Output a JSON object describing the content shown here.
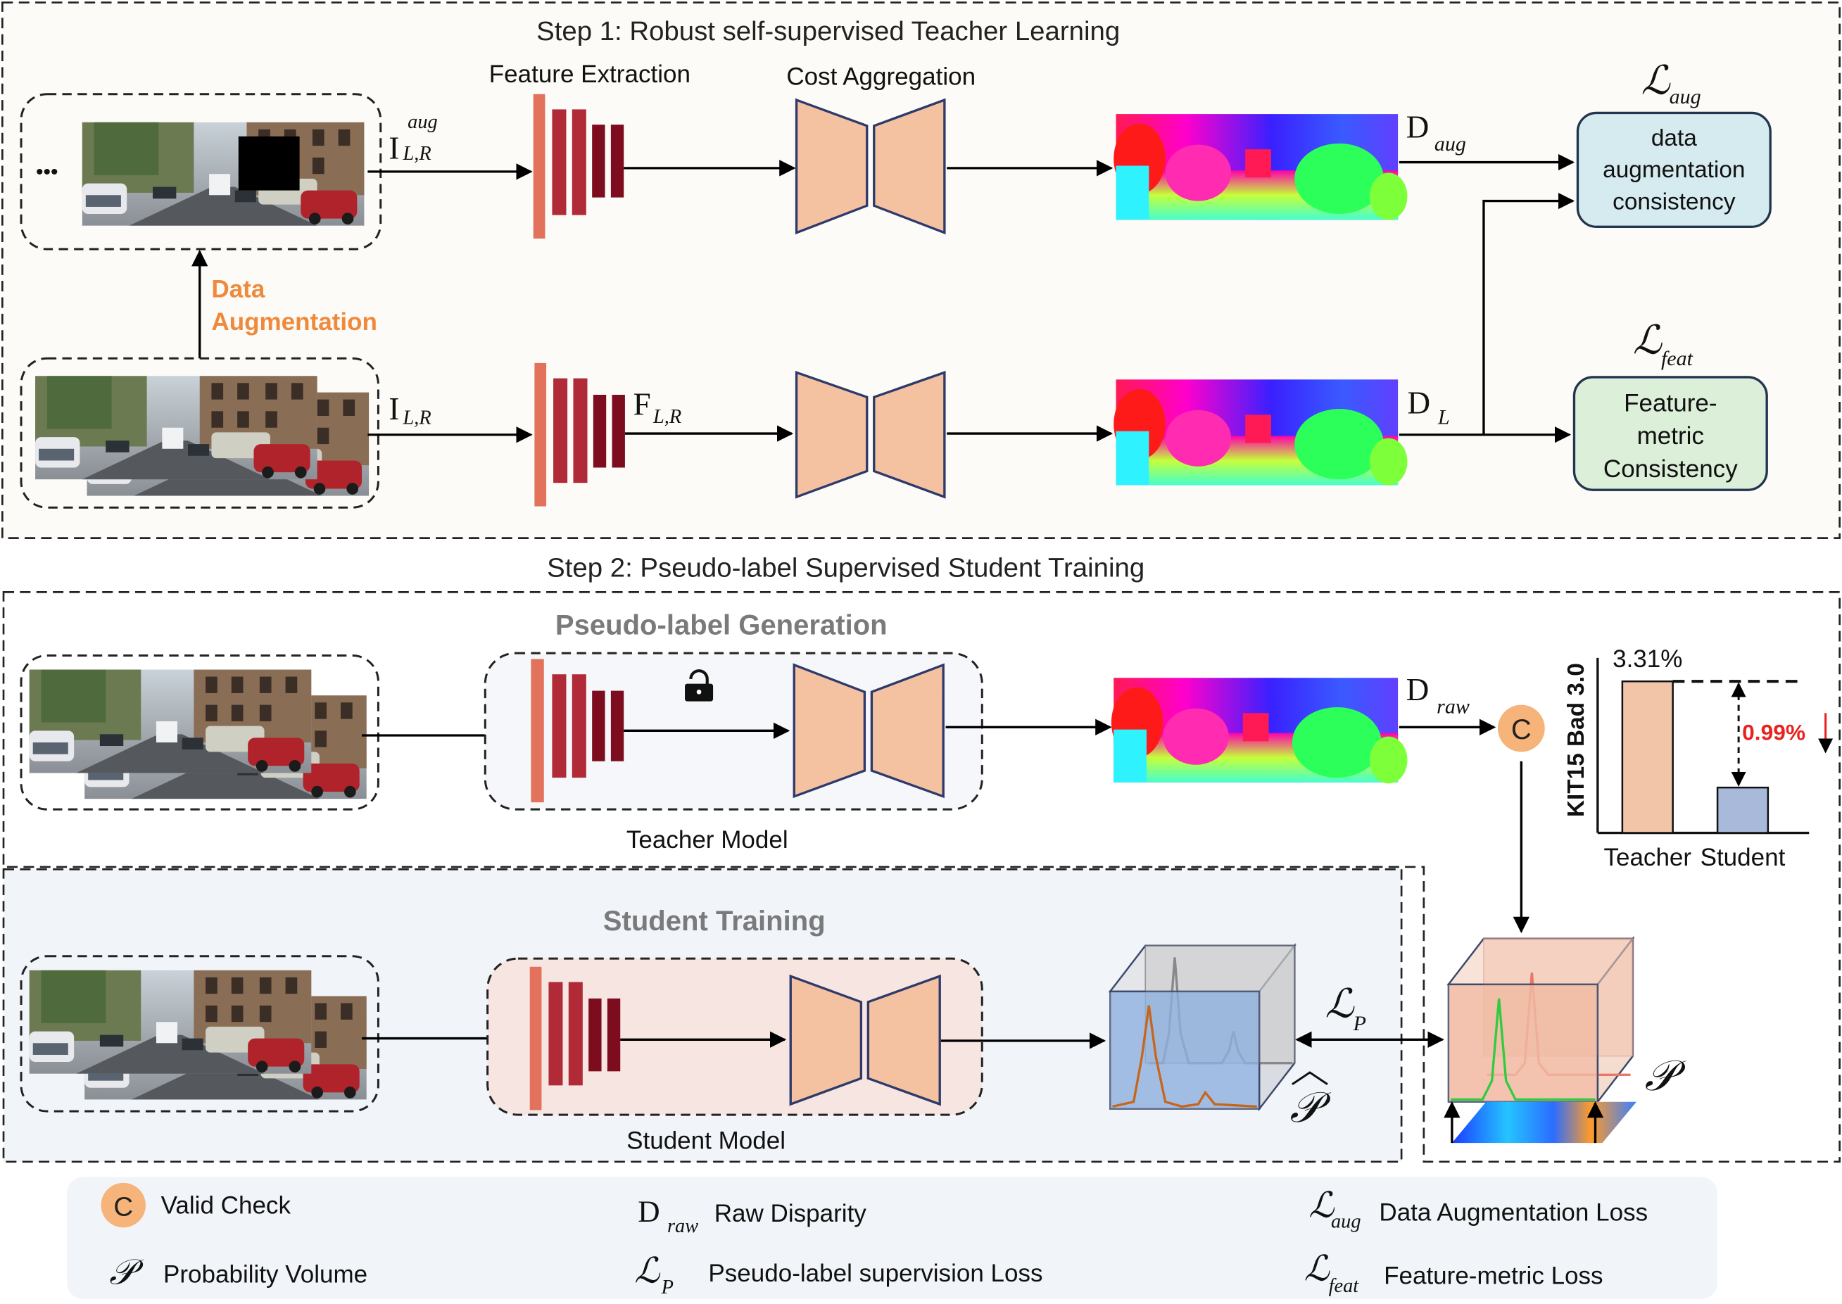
{
  "step1": {
    "title": "Step 1: Robust self-supervised Teacher Learning",
    "feature_extraction": "Feature Extraction",
    "cost_aggregation": "Cost Aggregation",
    "ellipsis": "•••",
    "data_aug_line1": "Data",
    "data_aug_line2": "Augmentation",
    "i_aug_base": "I",
    "i_aug_sub": "L,R",
    "i_aug_sup": "aug",
    "i_base": "I",
    "i_sub": "L,R",
    "f_base": "F",
    "f_sub": "L,R",
    "d_aug_base": "D",
    "d_aug_sub": "aug",
    "d_l_base": "D",
    "d_l_sub": "L",
    "loss_aug_symbol": "ℒ",
    "loss_aug_sub": "aug",
    "loss_aug_box": [
      "data",
      "augmentation",
      "consistency"
    ],
    "loss_feat_symbol": "ℒ",
    "loss_feat_sub": "feat",
    "loss_feat_box": [
      "Feature-",
      "metric",
      "Consistency"
    ]
  },
  "step2": {
    "title": "Step 2: Pseudo-label Supervised Student Training",
    "pseudo_label_generation": "Pseudo-label Generation",
    "teacher_model": "Teacher Model",
    "student_training": "Student Training",
    "student_model": "Student Model",
    "d_raw_base": "D",
    "d_raw_sub": "raw",
    "valid_check_letter": "C",
    "loss_p_symbol": "ℒ",
    "loss_p_sub": "P",
    "p_hat_symbol": "𝒫",
    "p_symbol": "𝒫"
  },
  "chart_data": {
    "type": "bar",
    "ylabel": "KIT15 Bad 3.0",
    "categories": [
      "Teacher",
      "Student"
    ],
    "values": [
      3.31,
      0.99
    ],
    "value_labels": [
      "3.31%",
      ""
    ],
    "annotation": "0.99%",
    "colors": [
      "#f2c4a8",
      "#a9b9da"
    ],
    "annotation_color": "#e8231f"
  },
  "legend": {
    "valid_check": "Valid Check",
    "raw_disparity": "Raw Disparity",
    "data_aug_loss": "Data Augmentation Loss",
    "probability_volume": "Probability Volume",
    "pseudo_label_loss": "Pseudo-label supervision Loss",
    "feature_metric_loss": "Feature-metric Loss",
    "c_letter": "C",
    "d_base": "D",
    "d_sub": "raw",
    "p_symbol": "𝒫",
    "l_symbol": "ℒ",
    "l_p_sub": "P",
    "l_aug_sub": "aug",
    "l_feat_sub": "feat"
  },
  "colors": {
    "feature_light": "#e2725b",
    "feature_mid": "#b02a37",
    "feature_dark": "#7d0c1f",
    "hourglass": "#f4c2a0",
    "loss_aug_box": "#d5ebef",
    "loss_feat_box": "#dcefd9",
    "valid_check": "#f6b37a",
    "orange_text": "#ef8a3c",
    "red_text": "#e8231f"
  }
}
